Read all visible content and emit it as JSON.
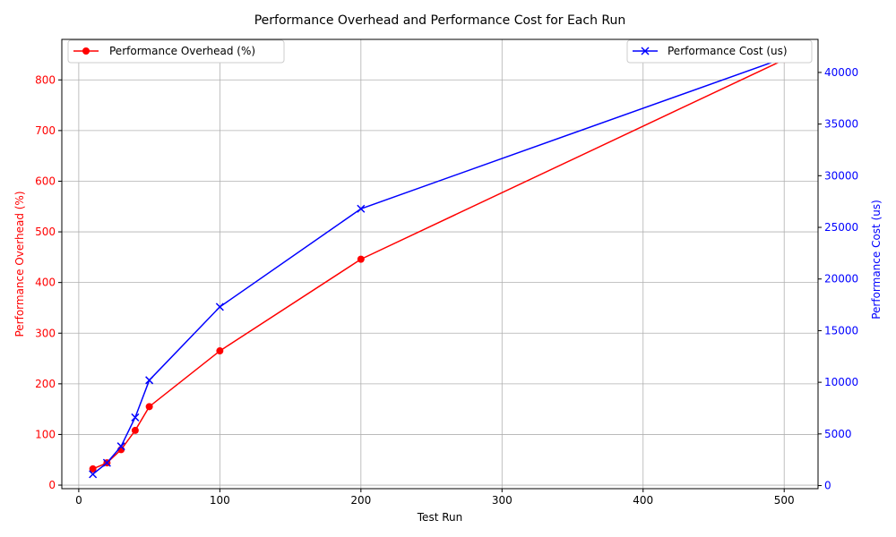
{
  "chart_data": {
    "type": "line",
    "title": "Performance Overhead and Performance Cost for Each Run",
    "xlabel": "Test Run",
    "ylabel_left": "Performance Overhead (%)",
    "ylabel_right": "Performance Cost (us)",
    "x": [
      10,
      20,
      30,
      40,
      50,
      100,
      200,
      500
    ],
    "x_ticks": [
      0,
      100,
      200,
      300,
      400,
      500
    ],
    "x_tick_labels": [
      "0",
      "100",
      "200",
      "300",
      "400",
      "500"
    ],
    "xlim": [
      -12,
      524
    ],
    "grid": true,
    "series": [
      {
        "name": "Performance Overhead (%)",
        "axis": "left",
        "color": "#ff0000",
        "marker": "circle",
        "values": [
          32,
          44,
          70,
          108,
          155,
          265,
          446,
          840
        ],
        "ylim": [
          -7,
          880
        ],
        "ticks": [
          0,
          100,
          200,
          300,
          400,
          500,
          600,
          700,
          800
        ],
        "tick_labels": [
          "0",
          "100",
          "200",
          "300",
          "400",
          "500",
          "600",
          "700",
          "800"
        ],
        "legend": "top-left"
      },
      {
        "name": "Performance Cost (us)",
        "axis": "right",
        "color": "#0000ff",
        "marker": "x",
        "values": [
          1100,
          2200,
          3800,
          6600,
          10200,
          17300,
          26800,
          41400
        ],
        "ylim": [
          -300,
          43200
        ],
        "ticks": [
          0,
          5000,
          10000,
          15000,
          20000,
          25000,
          30000,
          35000,
          40000
        ],
        "tick_labels": [
          "0",
          "5000",
          "10000",
          "15000",
          "20000",
          "25000",
          "30000",
          "35000",
          "40000"
        ],
        "legend": "top-right"
      }
    ]
  }
}
